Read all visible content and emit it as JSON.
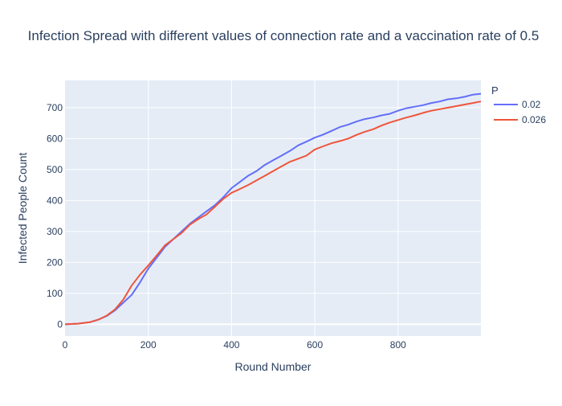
{
  "chart_data": {
    "type": "line",
    "title": "Infection Spread with different values of connection rate and a vaccination rate of 0.5",
    "xlabel": "Round Number",
    "ylabel": "Infected People Count",
    "xlim": [
      0,
      999
    ],
    "ylim": [
      -38,
      788
    ],
    "xticks": [
      0,
      200,
      400,
      600,
      800
    ],
    "yticks": [
      0,
      100,
      200,
      300,
      400,
      500,
      600,
      700
    ],
    "grid": true,
    "legend": {
      "title": "P",
      "placement": "right"
    },
    "series": [
      {
        "name": "0.02",
        "color": "#636efa",
        "x": [
          0,
          30,
          60,
          80,
          100,
          120,
          140,
          160,
          180,
          200,
          220,
          240,
          260,
          280,
          300,
          320,
          340,
          360,
          380,
          400,
          420,
          440,
          460,
          480,
          500,
          520,
          540,
          560,
          580,
          600,
          620,
          640,
          660,
          680,
          700,
          720,
          740,
          760,
          780,
          800,
          820,
          840,
          860,
          880,
          900,
          920,
          940,
          960,
          980,
          999
        ],
        "y": [
          0,
          2,
          7,
          15,
          27,
          45,
          70,
          95,
          135,
          180,
          215,
          250,
          275,
          300,
          325,
          345,
          365,
          385,
          410,
          440,
          460,
          480,
          495,
          515,
          530,
          545,
          560,
          578,
          590,
          603,
          613,
          625,
          637,
          645,
          655,
          663,
          668,
          675,
          680,
          690,
          698,
          703,
          708,
          715,
          720,
          727,
          730,
          735,
          742,
          745
        ]
      },
      {
        "name": "0.026",
        "color": "#ef553b",
        "x": [
          0,
          30,
          60,
          80,
          100,
          120,
          140,
          160,
          180,
          200,
          220,
          240,
          260,
          280,
          300,
          320,
          340,
          360,
          380,
          400,
          420,
          440,
          460,
          480,
          500,
          520,
          540,
          560,
          580,
          600,
          620,
          640,
          660,
          680,
          700,
          720,
          740,
          760,
          780,
          800,
          820,
          840,
          860,
          880,
          900,
          920,
          940,
          960,
          980,
          999
        ],
        "y": [
          0,
          2,
          7,
          15,
          28,
          48,
          80,
          125,
          160,
          190,
          222,
          255,
          275,
          295,
          322,
          340,
          355,
          380,
          405,
          425,
          437,
          450,
          465,
          480,
          495,
          510,
          525,
          535,
          545,
          565,
          575,
          585,
          592,
          600,
          612,
          622,
          630,
          642,
          652,
          660,
          668,
          675,
          683,
          690,
          695,
          700,
          705,
          710,
          715,
          720
        ]
      }
    ]
  }
}
